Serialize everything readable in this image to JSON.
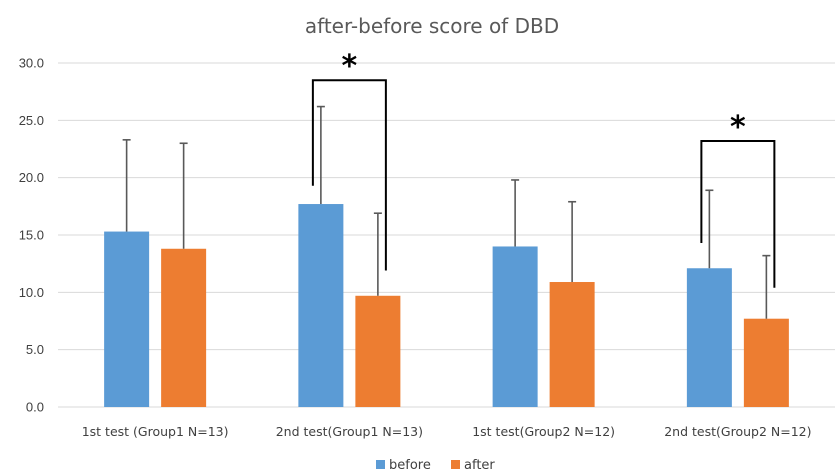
{
  "chart_data": {
    "type": "bar",
    "title": "after-before score of DBD",
    "categories": [
      "1st test (Group1 N=13)",
      "2nd test(Group1 N=13)",
      "1st test(Group2 N=12)",
      "2nd test(Group2 N=12)"
    ],
    "series": [
      {
        "name": "before",
        "color": "#5b9bd5",
        "values": [
          15.3,
          17.7,
          14.0,
          12.1
        ],
        "error": [
          8.0,
          8.5,
          5.8,
          6.8
        ]
      },
      {
        "name": "after",
        "color": "#ed7d31",
        "values": [
          13.8,
          9.7,
          10.9,
          7.7
        ],
        "error": [
          9.2,
          7.2,
          7.0,
          5.5
        ]
      }
    ],
    "yticks": [
      "0.0",
      "5.0",
      "10.0",
      "15.0",
      "20.0",
      "25.0",
      "30.0"
    ],
    "ylim": [
      0,
      30
    ],
    "grid": true,
    "legend_position": "bottom",
    "annotations": [
      {
        "category_index": 1,
        "label": "*",
        "bracket_top": 28.5,
        "left_end": 19.3,
        "right_end": 11.9
      },
      {
        "category_index": 3,
        "label": "*",
        "bracket_top": 23.2,
        "left_end": 14.3,
        "right_end": 10.4
      }
    ]
  }
}
